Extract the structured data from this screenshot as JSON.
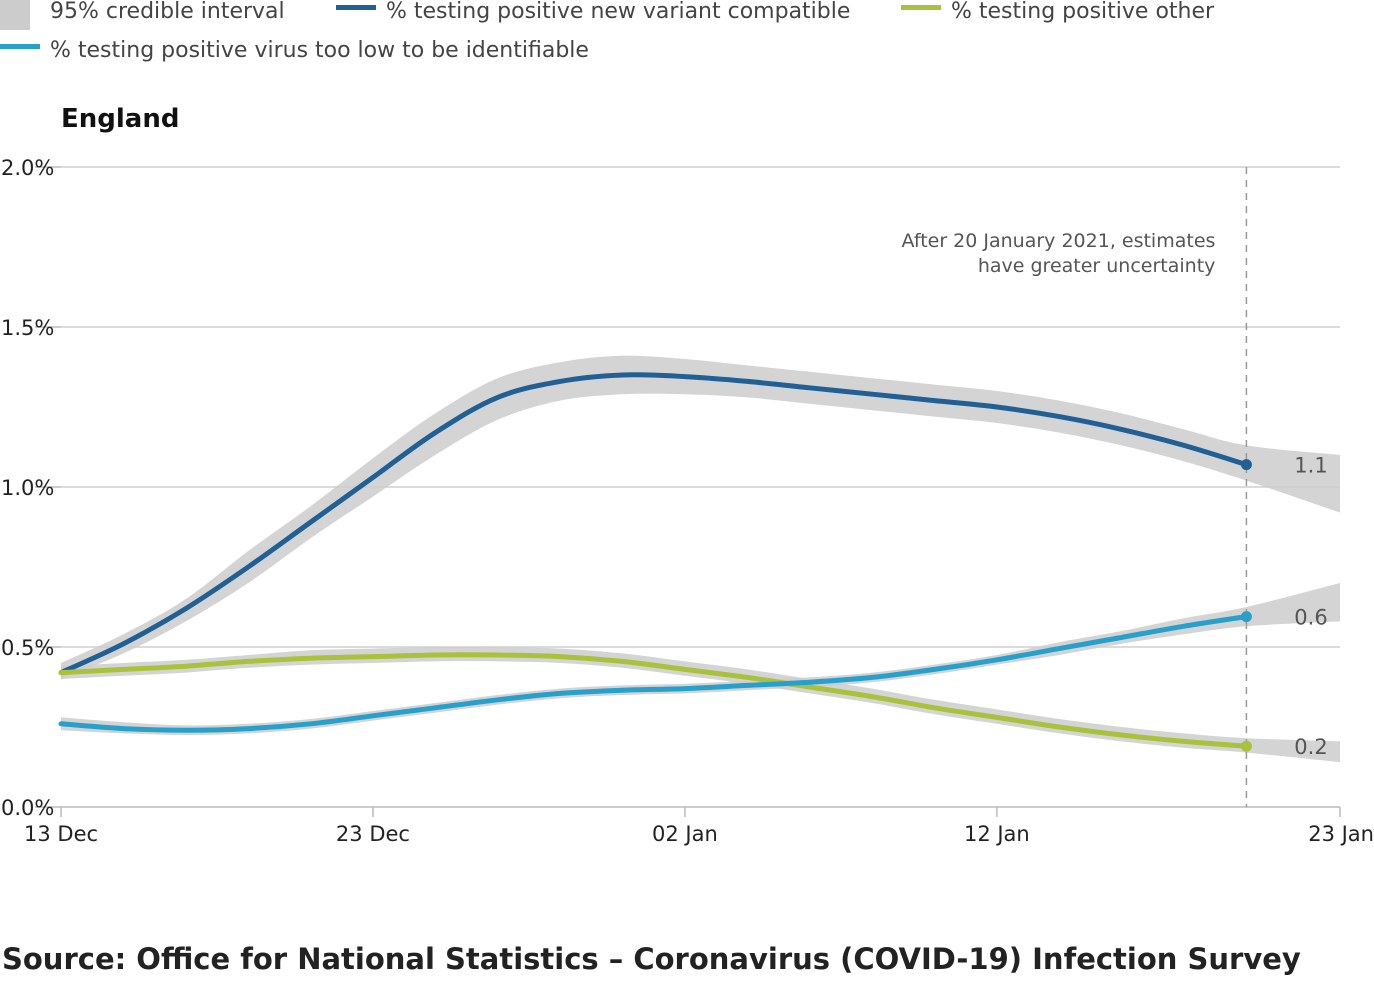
{
  "legend": [
    {
      "label": "95% credible interval",
      "kind": "band",
      "color": "#cccccc"
    },
    {
      "label": "% testing positive new variant compatible",
      "kind": "line",
      "color": "#206095"
    },
    {
      "label": "% testing positive other",
      "kind": "line",
      "color": "#a8c23c"
    },
    {
      "label": "% testing positive virus too low to be identifiable",
      "kind": "line",
      "color": "#27a0cc"
    }
  ],
  "source": "Source: Office for National Statistics – Coronavirus (COVID-19) Infection Survey",
  "chart_data": {
    "type": "line",
    "title": "England",
    "xlabel": "",
    "ylabel": "",
    "x_axis": {
      "start": "2020-12-13",
      "end": "2021-01-23",
      "ticks": [
        {
          "date": "2020-12-13",
          "label": "13 Dec"
        },
        {
          "date": "2020-12-23",
          "label": "23 Dec"
        },
        {
          "date": "2021-01-02",
          "label": "02 Jan"
        },
        {
          "date": "2021-01-12",
          "label": "12 Jan"
        },
        {
          "date": "2021-01-23",
          "label": "23 Jan"
        }
      ]
    },
    "y_axis": {
      "ylim": [
        0,
        2.0
      ],
      "ticks": [
        {
          "value": 0,
          "label": "0.0%"
        },
        {
          "value": 0.5,
          "label": "0.5%"
        },
        {
          "value": 1.0,
          "label": "1.0%"
        },
        {
          "value": 1.5,
          "label": "1.5%"
        },
        {
          "value": 2.0,
          "label": "2.0%"
        }
      ],
      "grid": true
    },
    "annotation": {
      "date": "2021-01-20",
      "lines": [
        "After 20 January 2021, estimates",
        "have greater uncertainty"
      ]
    },
    "series": [
      {
        "name": "% testing positive new variant compatible",
        "color": "#206095",
        "end_label": "1.1",
        "x": [
          "2020-12-13",
          "2020-12-15",
          "2020-12-17",
          "2020-12-19",
          "2020-12-21",
          "2020-12-23",
          "2020-12-25",
          "2020-12-27",
          "2020-12-29",
          "2020-12-31",
          "2021-01-02",
          "2021-01-04",
          "2021-01-06",
          "2021-01-08",
          "2021-01-10",
          "2021-01-12",
          "2021-01-14",
          "2021-01-16",
          "2021-01-18",
          "2021-01-20"
        ],
        "y": [
          0.42,
          0.51,
          0.62,
          0.75,
          0.89,
          1.03,
          1.17,
          1.28,
          1.33,
          1.35,
          1.345,
          1.33,
          1.31,
          1.29,
          1.27,
          1.25,
          1.22,
          1.18,
          1.13,
          1.07
        ],
        "ci_x": [
          "2020-12-13",
          "2020-12-15",
          "2020-12-17",
          "2020-12-19",
          "2020-12-21",
          "2020-12-23",
          "2020-12-25",
          "2020-12-27",
          "2020-12-29",
          "2020-12-31",
          "2021-01-02",
          "2021-01-04",
          "2021-01-06",
          "2021-01-08",
          "2021-01-10",
          "2021-01-12",
          "2021-01-14",
          "2021-01-16",
          "2021-01-18",
          "2021-01-20",
          "2021-01-23"
        ],
        "ci_lower": [
          0.4,
          0.48,
          0.58,
          0.7,
          0.84,
          0.97,
          1.1,
          1.21,
          1.27,
          1.29,
          1.29,
          1.28,
          1.26,
          1.24,
          1.22,
          1.2,
          1.17,
          1.13,
          1.08,
          1.02,
          0.92
        ],
        "ci_upper": [
          0.45,
          0.54,
          0.65,
          0.8,
          0.94,
          1.09,
          1.23,
          1.34,
          1.39,
          1.41,
          1.4,
          1.38,
          1.36,
          1.34,
          1.32,
          1.3,
          1.27,
          1.23,
          1.18,
          1.13,
          1.1
        ]
      },
      {
        "name": "% testing positive other",
        "color": "#a8c23c",
        "end_label": "0.2",
        "x": [
          "2020-12-13",
          "2020-12-15",
          "2020-12-17",
          "2020-12-19",
          "2020-12-21",
          "2020-12-23",
          "2020-12-25",
          "2020-12-27",
          "2020-12-29",
          "2020-12-31",
          "2021-01-02",
          "2021-01-04",
          "2021-01-06",
          "2021-01-08",
          "2021-01-10",
          "2021-01-12",
          "2021-01-14",
          "2021-01-16",
          "2021-01-18",
          "2021-01-20"
        ],
        "y": [
          0.42,
          0.43,
          0.44,
          0.455,
          0.465,
          0.47,
          0.475,
          0.475,
          0.47,
          0.455,
          0.43,
          0.405,
          0.375,
          0.345,
          0.31,
          0.28,
          0.25,
          0.225,
          0.205,
          0.19
        ],
        "ci_x": [
          "2020-12-13",
          "2020-12-15",
          "2020-12-17",
          "2020-12-19",
          "2020-12-21",
          "2020-12-23",
          "2020-12-25",
          "2020-12-27",
          "2020-12-29",
          "2020-12-31",
          "2021-01-02",
          "2021-01-04",
          "2021-01-06",
          "2021-01-08",
          "2021-01-10",
          "2021-01-12",
          "2021-01-14",
          "2021-01-16",
          "2021-01-18",
          "2021-01-20",
          "2021-01-23"
        ],
        "ci_lower": [
          0.4,
          0.41,
          0.42,
          0.435,
          0.445,
          0.45,
          0.455,
          0.455,
          0.45,
          0.435,
          0.41,
          0.385,
          0.355,
          0.325,
          0.29,
          0.26,
          0.23,
          0.205,
          0.185,
          0.17,
          0.14
        ],
        "ci_upper": [
          0.44,
          0.45,
          0.46,
          0.475,
          0.49,
          0.495,
          0.5,
          0.5,
          0.495,
          0.48,
          0.455,
          0.43,
          0.4,
          0.37,
          0.335,
          0.305,
          0.275,
          0.25,
          0.23,
          0.215,
          0.205
        ]
      },
      {
        "name": "% testing positive virus too low to be identifiable",
        "color": "#27a0cc",
        "end_label": "0.6",
        "x": [
          "2020-12-13",
          "2020-12-15",
          "2020-12-17",
          "2020-12-19",
          "2020-12-21",
          "2020-12-23",
          "2020-12-25",
          "2020-12-27",
          "2020-12-29",
          "2020-12-31",
          "2021-01-02",
          "2021-01-04",
          "2021-01-06",
          "2021-01-08",
          "2021-01-10",
          "2021-01-12",
          "2021-01-14",
          "2021-01-16",
          "2021-01-18",
          "2021-01-20"
        ],
        "y": [
          0.26,
          0.245,
          0.24,
          0.245,
          0.26,
          0.285,
          0.31,
          0.335,
          0.355,
          0.365,
          0.37,
          0.38,
          0.39,
          0.405,
          0.43,
          0.46,
          0.495,
          0.53,
          0.565,
          0.595
        ],
        "ci_x": [
          "2020-12-13",
          "2020-12-15",
          "2020-12-17",
          "2020-12-19",
          "2020-12-21",
          "2020-12-23",
          "2020-12-25",
          "2020-12-27",
          "2020-12-29",
          "2020-12-31",
          "2021-01-02",
          "2021-01-04",
          "2021-01-06",
          "2021-01-08",
          "2021-01-10",
          "2021-01-12",
          "2021-01-14",
          "2021-01-16",
          "2021-01-18",
          "2021-01-20",
          "2021-01-23"
        ],
        "ci_lower": [
          0.24,
          0.23,
          0.225,
          0.23,
          0.245,
          0.27,
          0.295,
          0.32,
          0.34,
          0.35,
          0.355,
          0.365,
          0.375,
          0.39,
          0.415,
          0.445,
          0.475,
          0.51,
          0.54,
          0.565,
          0.58
        ],
        "ci_upper": [
          0.28,
          0.265,
          0.255,
          0.26,
          0.275,
          0.3,
          0.325,
          0.35,
          0.37,
          0.38,
          0.385,
          0.395,
          0.405,
          0.42,
          0.445,
          0.475,
          0.515,
          0.55,
          0.59,
          0.625,
          0.7
        ]
      }
    ]
  }
}
